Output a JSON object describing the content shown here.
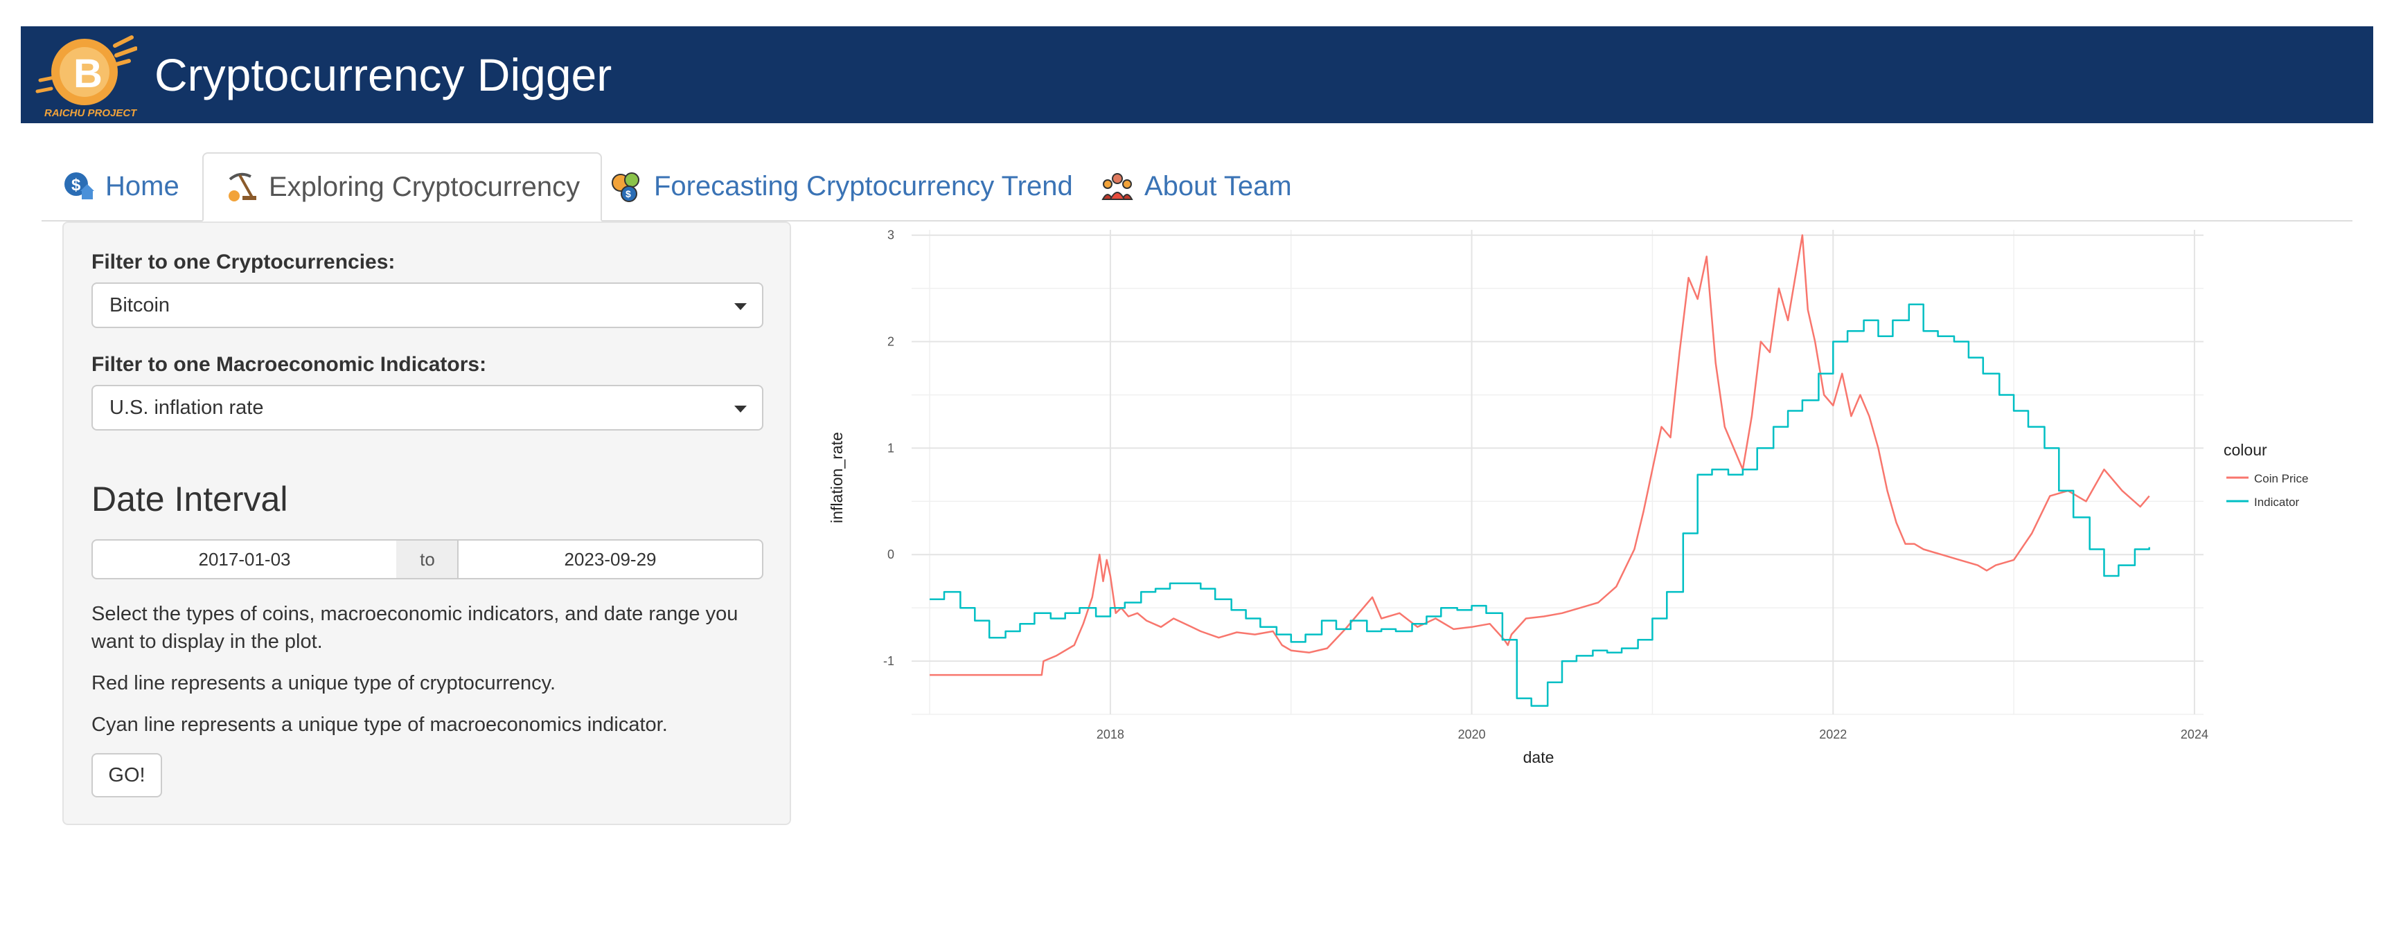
{
  "app": {
    "title": "Cryptocurrency Digger",
    "logo_text": "RAICHU PROJECT",
    "logo_icon": "bitcoin-icon"
  },
  "tabs": [
    {
      "label": "Home",
      "icon": "home-dollar-icon",
      "active": false
    },
    {
      "label": "Exploring Cryptocurrency",
      "icon": "pickaxe-icon",
      "active": true
    },
    {
      "label": "Forecasting Cryptocurrency Trend",
      "icon": "coins-icon",
      "active": false
    },
    {
      "label": "About Team",
      "icon": "team-icon",
      "active": false
    }
  ],
  "sidebar": {
    "crypto_filter": {
      "label": "Filter to one Cryptocurrencies:",
      "value": "Bitcoin"
    },
    "indicator_filter": {
      "label": "Filter to one Macroeconomic Indicators:",
      "value": "U.S. inflation rate"
    },
    "date_interval": {
      "title": "Date Interval",
      "start": "2017-01-03",
      "separator": "to",
      "end": "2023-09-29"
    },
    "help": [
      "Select the types of coins, macroeconomic indicators, and date range you want to display in the plot.",
      "Red line represents a unique type of cryptocurrency.",
      "Cyan line represents a unique type of macroeconomics indicator."
    ],
    "go_label": "GO!"
  },
  "colors": {
    "navbar": "#123466",
    "tab_link": "#3a73b5",
    "coin_price": "#F8766D",
    "indicator": "#00BFC4"
  },
  "chart_data": {
    "type": "line",
    "xlabel": "date",
    "ylabel": "inflation_rate",
    "xlim": [
      2016.9,
      2024.05
    ],
    "ylim": [
      -1.5,
      3.05
    ],
    "x_ticks": [
      2018,
      2020,
      2022,
      2024
    ],
    "x_tick_labels": [
      "2018",
      "2020",
      "2022",
      "2024"
    ],
    "y_ticks": [
      -1,
      0,
      1,
      2,
      3
    ],
    "y_tick_labels": [
      "-1",
      "0",
      "1",
      "2",
      "3"
    ],
    "grid": true,
    "legend": {
      "title": "colour",
      "position": "right"
    },
    "series": [
      {
        "name": "Coin Price",
        "color": "#F8766D",
        "x": [
          2017.0,
          2017.3,
          2017.5,
          2017.62,
          2017.63,
          2017.7,
          2017.8,
          2017.85,
          2017.9,
          2017.94,
          2017.96,
          2017.98,
          2018.0,
          2018.03,
          2018.06,
          2018.1,
          2018.15,
          2018.2,
          2018.28,
          2018.35,
          2018.45,
          2018.5,
          2018.6,
          2018.7,
          2018.8,
          2018.9,
          2018.95,
          2019.0,
          2019.1,
          2019.2,
          2019.3,
          2019.45,
          2019.5,
          2019.6,
          2019.7,
          2019.8,
          2019.9,
          2020.0,
          2020.1,
          2020.18,
          2020.2,
          2020.22,
          2020.3,
          2020.4,
          2020.5,
          2020.6,
          2020.7,
          2020.8,
          2020.9,
          2020.95,
          2021.0,
          2021.05,
          2021.1,
          2021.15,
          2021.2,
          2021.25,
          2021.3,
          2021.35,
          2021.4,
          2021.45,
          2021.5,
          2021.55,
          2021.6,
          2021.65,
          2021.7,
          2021.75,
          2021.8,
          2021.83,
          2021.86,
          2021.9,
          2021.95,
          2022.0,
          2022.05,
          2022.1,
          2022.15,
          2022.2,
          2022.25,
          2022.3,
          2022.35,
          2022.4,
          2022.45,
          2022.5,
          2022.6,
          2022.7,
          2022.8,
          2022.85,
          2022.9,
          2023.0,
          2023.1,
          2023.2,
          2023.3,
          2023.4,
          2023.5,
          2023.6,
          2023.7,
          2023.75
        ],
        "y": [
          -1.13,
          -1.13,
          -1.13,
          -1.13,
          -1.0,
          -0.95,
          -0.85,
          -0.65,
          -0.4,
          0.0,
          -0.25,
          -0.05,
          -0.2,
          -0.55,
          -0.5,
          -0.58,
          -0.55,
          -0.62,
          -0.68,
          -0.6,
          -0.68,
          -0.72,
          -0.78,
          -0.73,
          -0.75,
          -0.72,
          -0.85,
          -0.9,
          -0.92,
          -0.88,
          -0.7,
          -0.4,
          -0.6,
          -0.55,
          -0.68,
          -0.6,
          -0.7,
          -0.68,
          -0.65,
          -0.8,
          -0.85,
          -0.75,
          -0.6,
          -0.58,
          -0.55,
          -0.5,
          -0.45,
          -0.3,
          0.05,
          0.4,
          0.8,
          1.2,
          1.1,
          1.9,
          2.6,
          2.4,
          2.8,
          1.8,
          1.2,
          1.0,
          0.8,
          1.3,
          2.0,
          1.9,
          2.5,
          2.2,
          2.7,
          3.0,
          2.3,
          2.0,
          1.5,
          1.4,
          1.7,
          1.3,
          1.5,
          1.3,
          1.0,
          0.6,
          0.3,
          0.1,
          0.1,
          0.05,
          0.0,
          -0.05,
          -0.1,
          -0.15,
          -0.1,
          -0.05,
          0.2,
          0.55,
          0.6,
          0.5,
          0.8,
          0.6,
          0.45,
          0.55
        ]
      },
      {
        "name": "Indicator",
        "color": "#00BFC4",
        "x": [
          2017.0,
          2017.08,
          2017.17,
          2017.25,
          2017.33,
          2017.42,
          2017.5,
          2017.58,
          2017.67,
          2017.75,
          2017.83,
          2017.92,
          2018.0,
          2018.08,
          2018.17,
          2018.25,
          2018.33,
          2018.42,
          2018.5,
          2018.58,
          2018.67,
          2018.75,
          2018.83,
          2018.92,
          2019.0,
          2019.08,
          2019.17,
          2019.25,
          2019.33,
          2019.42,
          2019.5,
          2019.58,
          2019.67,
          2019.75,
          2019.83,
          2019.92,
          2020.0,
          2020.08,
          2020.17,
          2020.25,
          2020.33,
          2020.42,
          2020.5,
          2020.58,
          2020.67,
          2020.75,
          2020.83,
          2020.92,
          2021.0,
          2021.08,
          2021.17,
          2021.25,
          2021.33,
          2021.42,
          2021.5,
          2021.58,
          2021.67,
          2021.75,
          2021.83,
          2021.92,
          2022.0,
          2022.08,
          2022.17,
          2022.25,
          2022.33,
          2022.42,
          2022.5,
          2022.58,
          2022.67,
          2022.75,
          2022.83,
          2022.92,
          2023.0,
          2023.08,
          2023.17,
          2023.25,
          2023.33,
          2023.42,
          2023.5,
          2023.58,
          2023.67,
          2023.75
        ],
        "y": [
          -0.42,
          -0.35,
          -0.5,
          -0.62,
          -0.78,
          -0.72,
          -0.65,
          -0.55,
          -0.6,
          -0.55,
          -0.5,
          -0.58,
          -0.5,
          -0.45,
          -0.35,
          -0.32,
          -0.27,
          -0.27,
          -0.32,
          -0.42,
          -0.52,
          -0.6,
          -0.68,
          -0.75,
          -0.82,
          -0.75,
          -0.62,
          -0.7,
          -0.62,
          -0.72,
          -0.7,
          -0.72,
          -0.65,
          -0.58,
          -0.5,
          -0.52,
          -0.48,
          -0.55,
          -0.8,
          -1.35,
          -1.42,
          -1.2,
          -1.0,
          -0.95,
          -0.9,
          -0.92,
          -0.88,
          -0.8,
          -0.6,
          -0.35,
          0.2,
          0.75,
          0.8,
          0.75,
          0.8,
          1.0,
          1.2,
          1.35,
          1.45,
          1.7,
          2.0,
          2.1,
          2.2,
          2.05,
          2.2,
          2.35,
          2.1,
          2.05,
          2.0,
          1.85,
          1.7,
          1.5,
          1.35,
          1.2,
          1.0,
          0.6,
          0.35,
          0.05,
          -0.2,
          -0.1,
          0.05,
          0.07
        ]
      }
    ]
  }
}
